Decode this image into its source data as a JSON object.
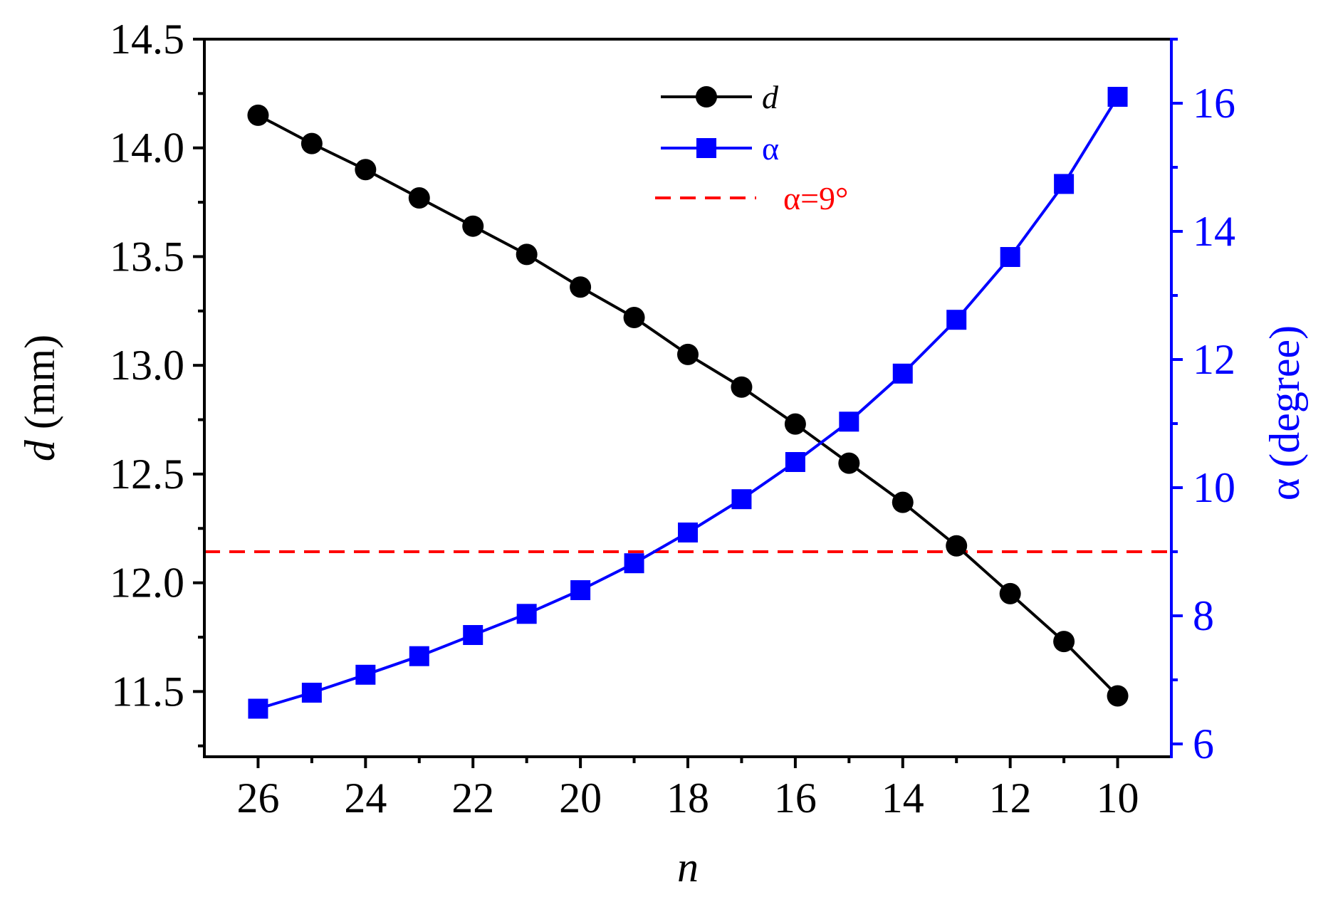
{
  "chart_data": {
    "type": "line",
    "x": [
      26,
      25,
      24,
      23,
      22,
      21,
      20,
      19,
      18,
      17,
      16,
      15,
      14,
      13,
      12,
      11,
      10
    ],
    "xlabel": "n",
    "xlim": [
      27,
      9
    ],
    "xticks": [
      26,
      24,
      22,
      20,
      18,
      16,
      14,
      12,
      10
    ],
    "xtick_labels": [
      "26",
      "24",
      "22",
      "20",
      "18",
      "16",
      "14",
      "12",
      "10"
    ],
    "series": [
      {
        "name": "d",
        "axis": "left",
        "marker": "circle",
        "color": "#000000",
        "values": [
          14.15,
          14.02,
          13.9,
          13.77,
          13.64,
          13.51,
          13.36,
          13.22,
          13.05,
          12.9,
          12.73,
          12.55,
          12.37,
          12.17,
          11.95,
          11.73,
          11.48
        ]
      },
      {
        "name": "α",
        "axis": "right",
        "marker": "square",
        "color": "#0000ff",
        "values": [
          6.55,
          6.8,
          7.08,
          7.37,
          7.7,
          8.03,
          8.4,
          8.82,
          9.3,
          9.82,
          10.4,
          11.03,
          11.78,
          12.62,
          13.6,
          14.74,
          16.1
        ]
      }
    ],
    "reference_line": {
      "name": "α=9°",
      "axis": "right",
      "value": 9,
      "color": "#ff0000",
      "style": "dashed"
    },
    "y_left": {
      "label_italic": "d",
      "label_rest": " (mm)",
      "ylim": [
        11.2,
        14.5
      ],
      "ticks": [
        11.5,
        12.0,
        12.5,
        13.0,
        13.5,
        14.0,
        14.5
      ],
      "tick_labels": [
        "11.5",
        "12.0",
        "12.5",
        "13.0",
        "13.5",
        "14.0",
        "14.5"
      ]
    },
    "y_right": {
      "label": "α (degree)",
      "ylim": [
        5.8,
        17
      ],
      "ticks": [
        6,
        8,
        10,
        12,
        14,
        16
      ],
      "tick_labels": [
        "6",
        "8",
        "10",
        "12",
        "14",
        "16"
      ],
      "color": "#0000ff"
    },
    "legend": {
      "position": "top-center",
      "entries": [
        {
          "label": "d",
          "italic": true,
          "color": "#000000",
          "marker": "circle"
        },
        {
          "label": "α",
          "italic": false,
          "color": "#0000ff",
          "marker": "square"
        },
        {
          "label": "α=9°",
          "italic": false,
          "color": "#ff0000",
          "marker": "dashed"
        }
      ]
    }
  }
}
